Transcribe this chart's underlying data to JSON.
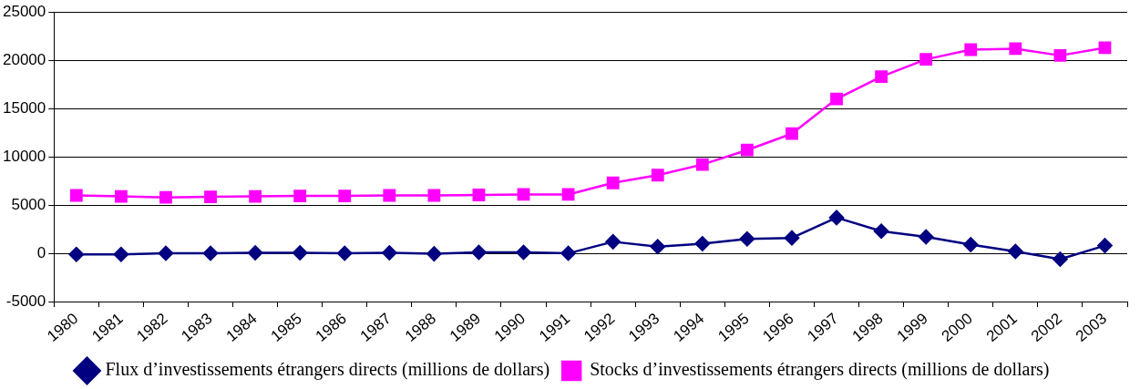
{
  "chart_data": {
    "type": "line",
    "categories": [
      "1980",
      "1981",
      "1982",
      "1983",
      "1984",
      "1985",
      "1986",
      "1987",
      "1988",
      "1989",
      "1990",
      "1991",
      "1992",
      "1993",
      "1994",
      "1995",
      "1996",
      "1997",
      "1998",
      "1999",
      "2000",
      "2001",
      "2002",
      "2003"
    ],
    "series": [
      {
        "name": "Flux d’investissements étrangers directs (millions de dollars)",
        "color": "#000080",
        "marker": "diamond",
        "values": [
          -100,
          -100,
          0,
          0,
          50,
          50,
          0,
          50,
          -50,
          100,
          100,
          0,
          1200,
          700,
          1000,
          1500,
          1600,
          3700,
          2300,
          1700,
          900,
          200,
          -600,
          800
        ]
      },
      {
        "name": "Stocks d’investissements étrangers directs (millions de dollars)",
        "color": "#ff00ff",
        "marker": "square",
        "values": [
          6000,
          5900,
          5800,
          5850,
          5900,
          5950,
          5950,
          6000,
          6000,
          6050,
          6100,
          6100,
          7300,
          8100,
          9200,
          10700,
          12400,
          16000,
          18300,
          20100,
          21100,
          21200,
          20500,
          21300
        ]
      }
    ],
    "ylim": [
      -5000,
      25000
    ],
    "yticks": [
      -5000,
      0,
      5000,
      10000,
      15000,
      20000,
      25000
    ],
    "grid": "y",
    "legend": "bottom",
    "line_style": "solid"
  }
}
